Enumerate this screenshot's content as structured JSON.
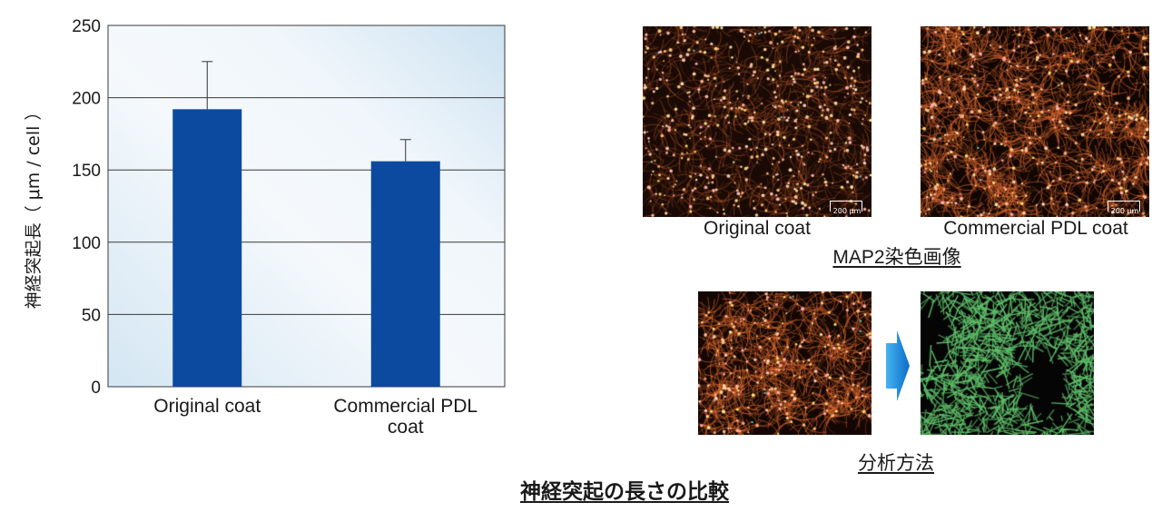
{
  "chart_data": {
    "type": "bar",
    "categories": [
      "Original coat",
      "Commercial PDL|coat"
    ],
    "values": [
      192,
      156
    ],
    "errors": [
      33,
      15
    ],
    "ylabel": "神経突起長（ μm / cell ）",
    "ylim": [
      0,
      250
    ],
    "yticks": [
      0,
      50,
      100,
      150,
      200,
      250
    ],
    "grid": true,
    "bar_color": "#0b4a9e",
    "background": "light blue gradient"
  },
  "images": {
    "map2_original_caption": "Original coat",
    "map2_commercial_caption": "Commercial PDL coat",
    "map2_section_title": "MAP2染色画像",
    "scale_label": "200 μm",
    "analysis_title": "分析方法"
  },
  "footer": {
    "title": "神経突起の長さの比較"
  },
  "colors": {
    "stain": "#ff9a4a",
    "trace": "#5fbf6a",
    "arrow": "#1a8ee0"
  }
}
